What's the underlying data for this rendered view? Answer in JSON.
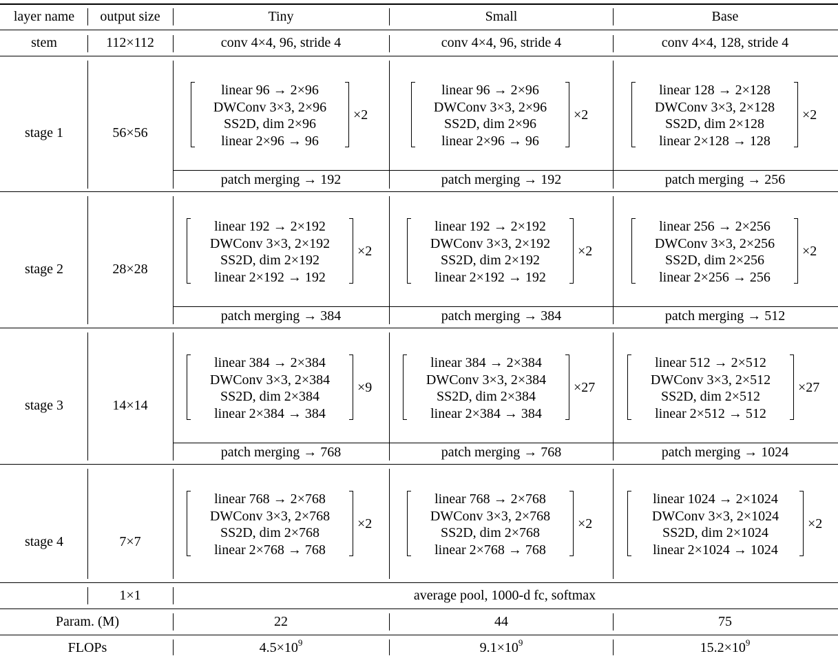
{
  "header": [
    "layer name",
    "output size",
    "Tiny",
    "Small",
    "Base"
  ],
  "stem": {
    "name": "stem",
    "size": "112×112",
    "cells": [
      "conv 4×4, 96, stride 4",
      "conv 4×4, 96, stride 4",
      "conv 4×4, 128, stride 4"
    ]
  },
  "stage1": {
    "name": "stage 1",
    "size": "56×56",
    "tiny": {
      "lines": [
        "linear 96 → 2×96",
        "DWConv 3×3, 2×96",
        "SS2D, dim 2×96",
        "linear 2×96 → 96"
      ],
      "rep": "×2"
    },
    "small": {
      "lines": [
        "linear 96 → 2×96",
        "DWConv 3×3, 2×96",
        "SS2D, dim 2×96",
        "linear 2×96 → 96"
      ],
      "rep": "×2"
    },
    "base": {
      "lines": [
        "linear 128 → 2×128",
        "DWConv 3×3, 2×128",
        "SS2D, dim 2×128",
        "linear 2×128 → 128"
      ],
      "rep": "×2"
    },
    "merge": [
      "patch merging → 192",
      "patch merging → 192",
      "patch merging → 256"
    ]
  },
  "stage2": {
    "name": "stage 2",
    "size": "28×28",
    "tiny": {
      "lines": [
        "linear 192 → 2×192",
        "DWConv 3×3, 2×192",
        "SS2D, dim 2×192",
        "linear 2×192 → 192"
      ],
      "rep": "×2"
    },
    "small": {
      "lines": [
        "linear 192 → 2×192",
        "DWConv 3×3, 2×192",
        "SS2D, dim 2×192",
        "linear 2×192 → 192"
      ],
      "rep": "×2"
    },
    "base": {
      "lines": [
        "linear 256 → 2×256",
        "DWConv 3×3, 2×256",
        "SS2D, dim 2×256",
        "linear 2×256 → 256"
      ],
      "rep": "×2"
    },
    "merge": [
      "patch merging → 384",
      "patch merging → 384",
      "patch merging → 512"
    ]
  },
  "stage3": {
    "name": "stage 3",
    "size": "14×14",
    "tiny": {
      "lines": [
        "linear 384 → 2×384",
        "DWConv 3×3, 2×384",
        "SS2D, dim 2×384",
        "linear 2×384 → 384"
      ],
      "rep": "×9"
    },
    "small": {
      "lines": [
        "linear 384 → 2×384",
        "DWConv 3×3, 2×384",
        "SS2D, dim 2×384",
        "linear 2×384 → 384"
      ],
      "rep": "×27"
    },
    "base": {
      "lines": [
        "linear 512 → 2×512",
        "DWConv 3×3, 2×512",
        "SS2D, dim 2×512",
        "linear 2×512 → 512"
      ],
      "rep": "×27"
    },
    "merge": [
      "patch merging → 768",
      "patch merging → 768",
      "patch merging → 1024"
    ]
  },
  "stage4": {
    "name": "stage 4",
    "size": "7×7",
    "tiny": {
      "lines": [
        "linear 768 → 2×768",
        "DWConv 3×3, 2×768",
        "SS2D, dim 2×768",
        "linear 2×768 → 768"
      ],
      "rep": "×2"
    },
    "small": {
      "lines": [
        "linear 768 → 2×768",
        "DWConv 3×3, 2×768",
        "SS2D, dim 2×768",
        "linear 2×768 → 768"
      ],
      "rep": "×2"
    },
    "base": {
      "lines": [
        "linear 1024 → 2×1024",
        "DWConv 3×3, 2×1024",
        "SS2D, dim 2×1024",
        "linear 2×1024 → 1024"
      ],
      "rep": "×2"
    }
  },
  "head": {
    "size": "1×1",
    "text": "average pool, 1000-d fc, softmax"
  },
  "params": {
    "label": "Param. (M)",
    "values": [
      "22",
      "44",
      "75"
    ]
  },
  "flops": {
    "label": "FLOPs",
    "values": [
      {
        "mant": "4.5×10",
        "exp": "9"
      },
      {
        "mant": "9.1×10",
        "exp": "9"
      },
      {
        "mant": "15.2×10",
        "exp": "9"
      }
    ]
  }
}
